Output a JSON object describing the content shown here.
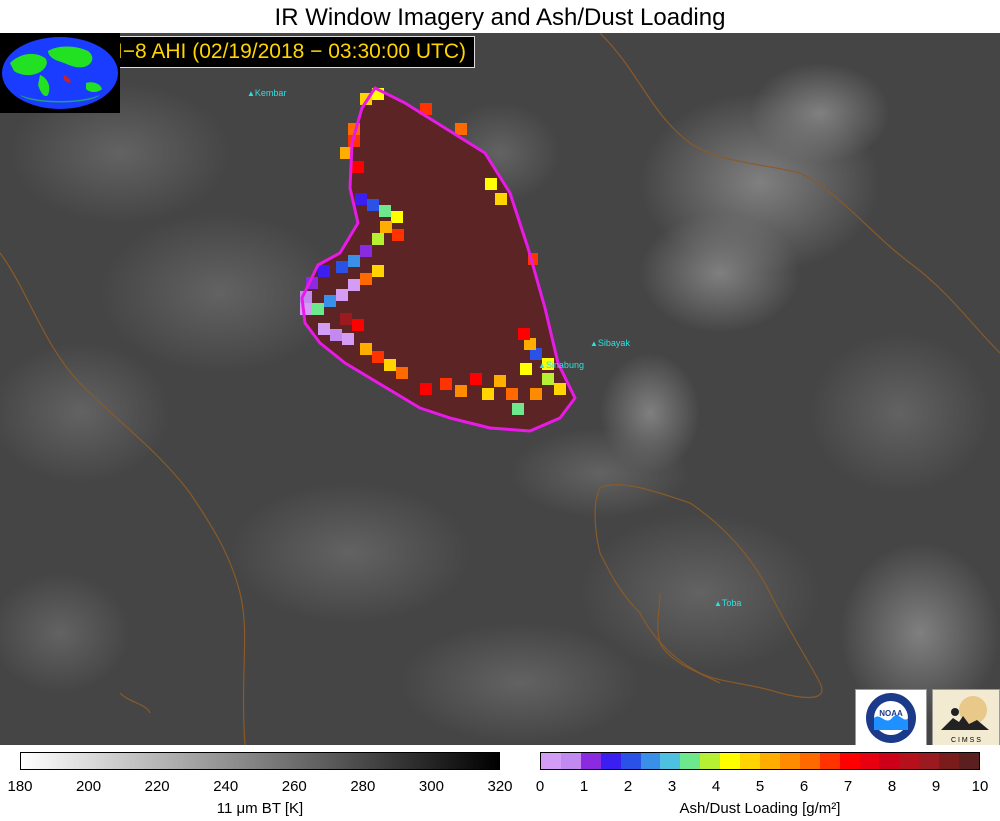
{
  "title": "IR Window Imagery and Ash/Dust Loading",
  "banner": "HIMAWARI−8 AHI (02/19/2018 − 03:30:00 UTC)",
  "volcanoes": {
    "kembar": "Kembar",
    "sibayak": "Sibayak",
    "sinabung": "Sinabung",
    "toba": "Toba"
  },
  "logos": {
    "noaa": "NOAA",
    "cimss": "C I M S S"
  },
  "bt_colorbar": {
    "ticks": [
      "180",
      "200",
      "220",
      "240",
      "260",
      "280",
      "300",
      "320"
    ],
    "label": "11 μm BT [K]",
    "range": [
      180,
      320
    ]
  },
  "ash_colorbar": {
    "ticks": [
      "0",
      "1",
      "2",
      "3",
      "4",
      "5",
      "6",
      "7",
      "8",
      "9",
      "10"
    ],
    "label": "Ash/Dust Loading [g/m²]",
    "range": [
      0,
      10
    ],
    "colors": [
      "#d39cf5",
      "#c28af0",
      "#8a2be2",
      "#3b1ff0",
      "#2a52e6",
      "#3a8fe8",
      "#4ec0e0",
      "#6ee88c",
      "#b6f032",
      "#ffff00",
      "#ffd400",
      "#ffae00",
      "#ff8c00",
      "#ff6a00",
      "#ff3300",
      "#ff0000",
      "#e80010",
      "#cc0018",
      "#b5101c",
      "#9a1a1f",
      "#7a1c1c",
      "#5c1f1f"
    ]
  },
  "colors": {
    "plume_outline": "#e81ae8",
    "plume_core": "#5c2424",
    "coastline": "#8a5a28",
    "volcano_marker": "#2fe0e0",
    "banner_text": "#ffd400"
  }
}
